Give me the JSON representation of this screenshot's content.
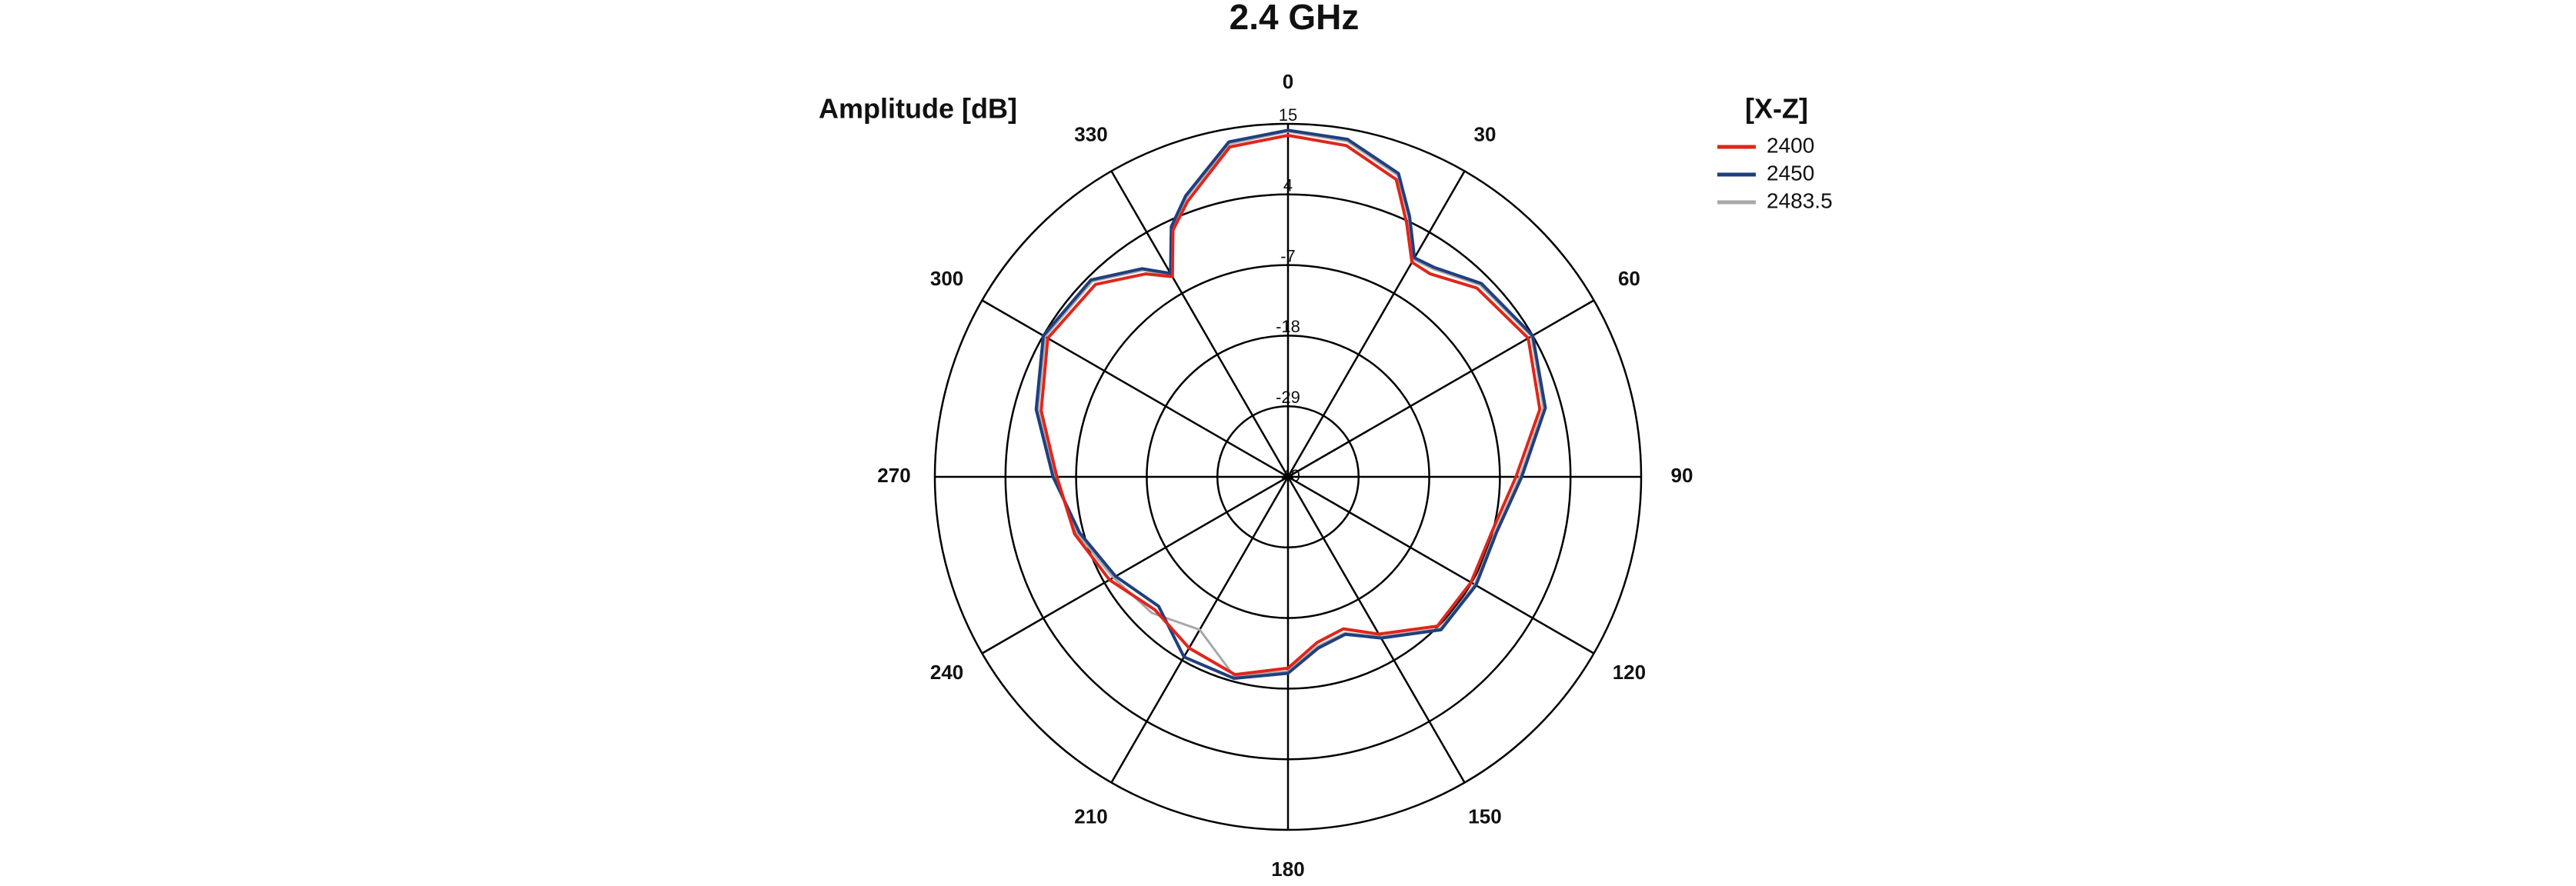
{
  "chart_data": {
    "type": "polar",
    "title": "2.4 GHz",
    "radial_axis_label": "Amplitude [dB]",
    "legend_title": "[X-Z]",
    "rlim": [
      -40,
      15
    ],
    "rticks": [
      -40,
      -29,
      -18,
      -7,
      4,
      15
    ],
    "thetaticks": [
      0,
      30,
      60,
      90,
      120,
      150,
      180,
      210,
      240,
      270,
      300,
      330
    ],
    "theta": [
      0,
      10,
      20,
      25,
      30,
      35,
      45,
      60,
      75,
      90,
      105,
      120,
      135,
      150,
      160,
      170,
      180,
      195,
      210,
      225,
      240,
      255,
      270,
      285,
      300,
      315,
      325,
      330,
      335,
      340,
      350
    ],
    "series": [
      {
        "name": "2400",
        "color": "#e0261b",
        "values": [
          13.2,
          12.4,
          9.3,
          3.7,
          -1.4,
          -1.4,
          1.6,
          3.2,
          0.6,
          -4.5,
          -7.1,
          -7.1,
          -7.1,
          -11.7,
          -14.8,
          -13.8,
          -10.2,
          -8.1,
          -9.2,
          -10.7,
          -7.9,
          -5.6,
          -4.0,
          -0.2,
          3.2,
          2.4,
          -1.4,
          -4.0,
          2.4,
          5.7,
          12.2
        ]
      },
      {
        "name": "2450",
        "color": "#1f3f7f",
        "values": [
          14.0,
          13.4,
          10.3,
          4.8,
          -0.6,
          -0.2,
          2.6,
          4.0,
          1.5,
          -3.6,
          -6.4,
          -6.2,
          -6.3,
          -11.0,
          -13.9,
          -12.9,
          -9.4,
          -7.5,
          -7.6,
          -11.5,
          -9.0,
          -6.4,
          -3.4,
          0.6,
          4.0,
          3.4,
          -0.4,
          -3.4,
          3.0,
          6.6,
          13.0
        ]
      },
      {
        "name": "2483.5",
        "color": "#a8a8a8",
        "values": [
          13.8,
          13.1,
          10.0,
          4.5,
          -0.9,
          -0.5,
          2.3,
          3.8,
          1.2,
          -3.9,
          -6.6,
          -6.4,
          -6.5,
          -11.2,
          -14.1,
          -13.2,
          -9.7,
          -7.8,
          -12.5,
          -10.0,
          -8.6,
          -6.0,
          -3.6,
          0.3,
          3.7,
          3.1,
          -0.7,
          -3.7,
          2.8,
          6.3,
          12.7
        ]
      }
    ]
  }
}
